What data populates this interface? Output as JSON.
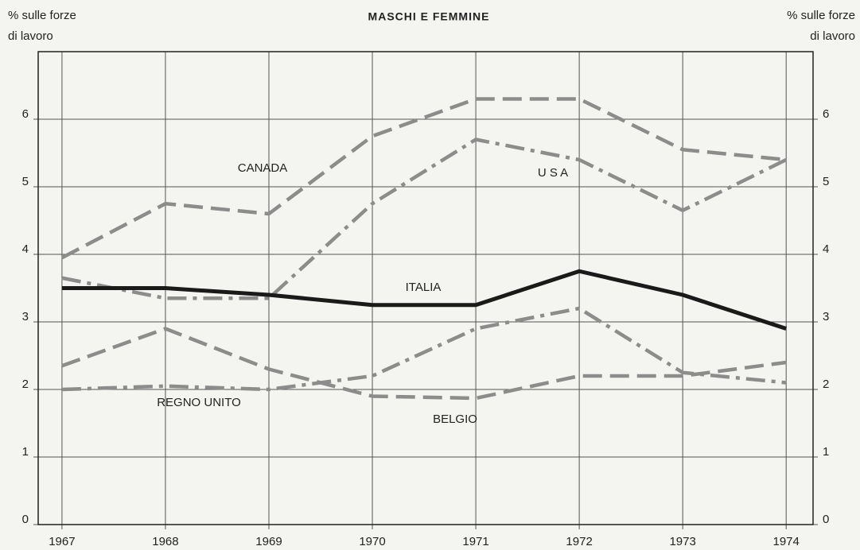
{
  "chart_data": {
    "type": "line",
    "title": "MASCHI E FEMMINE",
    "y_label": [
      "% sulle forze",
      "di lavoro"
    ],
    "y2_label": [
      "% sulle forze",
      "di lavoro"
    ],
    "x": [
      1967,
      1968,
      1969,
      1970,
      1971,
      1972,
      1973,
      1974
    ],
    "xlim": [
      1966.77,
      1974.26
    ],
    "xticks": [
      1967,
      1968,
      1969,
      1970,
      1971,
      1972,
      1973,
      1974
    ],
    "ylim": [
      0,
      7
    ],
    "yticks": [
      0,
      1,
      2,
      3,
      4,
      5,
      6
    ],
    "y2lim": [
      0,
      7
    ],
    "y2ticks": [
      0,
      1,
      2,
      3,
      4,
      5,
      6
    ],
    "grid": true,
    "series": [
      {
        "name": "CANADA",
        "color": "#8c8c8c",
        "style": "dashed",
        "values": [
          3.95,
          4.75,
          4.6,
          5.75,
          6.3,
          6.3,
          5.55,
          5.4
        ]
      },
      {
        "name": "U S A",
        "color": "#8c8c8c",
        "style": "dashdot",
        "values": [
          3.65,
          3.35,
          3.35,
          4.75,
          5.7,
          5.4,
          4.65,
          5.4
        ]
      },
      {
        "name": "ITALIA",
        "color": "#1a1a1a",
        "style": "solid",
        "values": [
          3.5,
          3.5,
          3.4,
          3.25,
          3.25,
          3.75,
          3.4,
          2.9
        ]
      },
      {
        "name": "REGNO UNITO",
        "color": "#8c8c8c",
        "style": "dashdot",
        "values": [
          2.0,
          2.05,
          2.0,
          2.2,
          2.9,
          3.2,
          2.25,
          2.1
        ]
      },
      {
        "name": "BELGIO",
        "color": "#8c8c8c",
        "style": "dashed",
        "values": [
          2.35,
          2.9,
          2.3,
          1.9,
          1.87,
          2.2,
          2.2,
          2.4
        ]
      }
    ]
  }
}
